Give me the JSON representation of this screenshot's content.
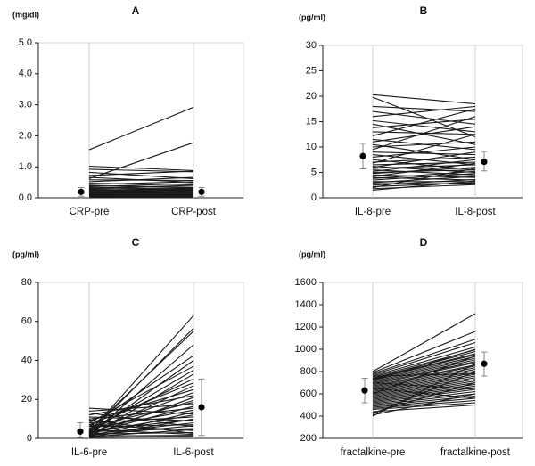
{
  "chart_data": [
    {
      "type": "line",
      "panel": "A",
      "unit": "(mg/dl)",
      "categories": [
        "CRP-pre",
        "CRP-post"
      ],
      "ylim": [
        0,
        5
      ],
      "yticks": [
        0.0,
        1.0,
        2.0,
        3.0,
        4.0,
        5.0
      ],
      "tick_decimals": 1,
      "grid": false,
      "pairs": [
        [
          1.55,
          2.92
        ],
        [
          0.62,
          1.78
        ],
        [
          1.02,
          0.88
        ],
        [
          0.92,
          0.84
        ],
        [
          0.82,
          0.62
        ],
        [
          0.72,
          0.86
        ],
        [
          0.66,
          0.5
        ],
        [
          0.58,
          0.56
        ],
        [
          0.52,
          0.66
        ],
        [
          0.47,
          0.42
        ],
        [
          0.43,
          0.52
        ],
        [
          0.39,
          0.34
        ],
        [
          0.36,
          0.46
        ],
        [
          0.33,
          0.3
        ],
        [
          0.31,
          0.4
        ],
        [
          0.29,
          0.27
        ],
        [
          0.27,
          0.33
        ],
        [
          0.25,
          0.24
        ],
        [
          0.23,
          0.29
        ],
        [
          0.21,
          0.21
        ],
        [
          0.2,
          0.26
        ],
        [
          0.18,
          0.18
        ],
        [
          0.17,
          0.22
        ],
        [
          0.16,
          0.16
        ],
        [
          0.15,
          0.2
        ],
        [
          0.14,
          0.14
        ],
        [
          0.13,
          0.17
        ],
        [
          0.12,
          0.12
        ],
        [
          0.11,
          0.15
        ],
        [
          0.1,
          0.11
        ],
        [
          0.09,
          0.13
        ],
        [
          0.08,
          0.09
        ],
        [
          0.07,
          0.1
        ],
        [
          0.06,
          0.07
        ],
        [
          0.05,
          0.08
        ],
        [
          0.05,
          0.05
        ],
        [
          0.04,
          0.06
        ],
        [
          0.03,
          0.04
        ],
        [
          0.03,
          0.05
        ],
        [
          0.02,
          0.03
        ]
      ],
      "summary": [
        {
          "category": "CRP-pre",
          "mean": 0.19,
          "low": 0.05,
          "high": 0.33
        },
        {
          "category": "CRP-post",
          "mean": 0.19,
          "low": 0.05,
          "high": 0.33
        }
      ]
    },
    {
      "type": "line",
      "panel": "B",
      "unit": "(pg/ml)",
      "categories": [
        "IL-8-pre",
        "IL-8-post"
      ],
      "ylim": [
        0,
        30
      ],
      "yticks": [
        0,
        5,
        10,
        15,
        20,
        25,
        30
      ],
      "tick_decimals": 0,
      "grid": false,
      "pairs": [
        [
          20.3,
          18.5
        ],
        [
          19.8,
          12.0
        ],
        [
          18.0,
          17.0
        ],
        [
          17.0,
          14.5
        ],
        [
          16.0,
          18.0
        ],
        [
          15.2,
          13.0
        ],
        [
          14.5,
          10.5
        ],
        [
          13.8,
          15.5
        ],
        [
          13.0,
          12.5
        ],
        [
          12.2,
          17.5
        ],
        [
          11.5,
          9.5
        ],
        [
          11.0,
          14.0
        ],
        [
          10.5,
          7.5
        ],
        [
          10.0,
          11.0
        ],
        [
          9.5,
          16.0
        ],
        [
          9.0,
          8.5
        ],
        [
          8.5,
          6.5
        ],
        [
          8.0,
          10.0
        ],
        [
          7.5,
          5.5
        ],
        [
          7.0,
          8.0
        ],
        [
          6.8,
          12.5
        ],
        [
          6.5,
          7.0
        ],
        [
          6.2,
          5.0
        ],
        [
          6.0,
          9.0
        ],
        [
          5.8,
          6.5
        ],
        [
          5.5,
          4.5
        ],
        [
          5.2,
          7.5
        ],
        [
          5.0,
          5.5
        ],
        [
          4.8,
          6.0
        ],
        [
          4.5,
          4.0
        ],
        [
          4.2,
          6.8
        ],
        [
          4.0,
          3.5
        ],
        [
          3.8,
          5.2
        ],
        [
          3.5,
          4.8
        ],
        [
          3.2,
          3.2
        ],
        [
          3.0,
          4.2
        ],
        [
          2.8,
          2.8
        ],
        [
          2.5,
          3.6
        ],
        [
          2.2,
          3.0
        ],
        [
          2.0,
          5.8
        ],
        [
          1.8,
          2.6
        ],
        [
          1.5,
          3.3
        ]
      ],
      "summary": [
        {
          "category": "IL-8-pre",
          "mean": 8.2,
          "low": 5.7,
          "high": 10.7
        },
        {
          "category": "IL-8-post",
          "mean": 7.1,
          "low": 5.3,
          "high": 9.1
        }
      ]
    },
    {
      "type": "line",
      "panel": "C",
      "unit": "(pg/ml)",
      "categories": [
        "IL-6-pre",
        "IL-6-post"
      ],
      "ylim": [
        0,
        80
      ],
      "yticks": [
        0,
        20,
        40,
        60,
        80
      ],
      "tick_decimals": 0,
      "grid": false,
      "pairs": [
        [
          3.0,
          63.0
        ],
        [
          2.5,
          56.5
        ],
        [
          4.0,
          55.0
        ],
        [
          1.5,
          48.0
        ],
        [
          6.0,
          42.5
        ],
        [
          2.0,
          40.0
        ],
        [
          8.0,
          37.0
        ],
        [
          3.5,
          35.0
        ],
        [
          1.0,
          33.0
        ],
        [
          5.0,
          30.5
        ],
        [
          7.0,
          28.5
        ],
        [
          2.0,
          27.0
        ],
        [
          9.0,
          25.0
        ],
        [
          4.0,
          23.5
        ],
        [
          12.0,
          22.0
        ],
        [
          1.5,
          21.0
        ],
        [
          3.0,
          19.5
        ],
        [
          6.0,
          18.5
        ],
        [
          14.0,
          17.5
        ],
        [
          2.5,
          16.5
        ],
        [
          10.0,
          15.5
        ],
        [
          5.0,
          14.5
        ],
        [
          1.0,
          13.5
        ],
        [
          15.5,
          12.5
        ],
        [
          3.0,
          12.0
        ],
        [
          8.0,
          11.0
        ],
        [
          0.5,
          10.0
        ],
        [
          4.0,
          9.5
        ],
        [
          11.0,
          9.0
        ],
        [
          2.0,
          8.0
        ],
        [
          6.0,
          7.0
        ],
        [
          1.5,
          6.5
        ],
        [
          13.0,
          6.0
        ],
        [
          3.5,
          5.0
        ],
        [
          0.8,
          4.5
        ],
        [
          7.0,
          4.0
        ],
        [
          2.2,
          3.0
        ],
        [
          9.5,
          2.5
        ],
        [
          4.5,
          2.0
        ],
        [
          1.2,
          1.5
        ],
        [
          0.5,
          1.0
        ]
      ],
      "summary": [
        {
          "category": "IL-6-pre",
          "mean": 3.5,
          "low": 0.5,
          "high": 8.0
        },
        {
          "category": "IL-6-post",
          "mean": 16.0,
          "low": 1.5,
          "high": 30.5
        }
      ]
    },
    {
      "type": "line",
      "panel": "D",
      "unit": "(pg/ml)",
      "categories": [
        "fractalkine-pre",
        "fractalkine-post"
      ],
      "ylim": [
        200,
        1600
      ],
      "yticks": [
        200,
        400,
        600,
        800,
        1000,
        1200,
        1400,
        1600
      ],
      "tick_decimals": 0,
      "grid": false,
      "pairs": [
        [
          800,
          1320
        ],
        [
          790,
          1160
        ],
        [
          780,
          1090
        ],
        [
          770,
          1060
        ],
        [
          760,
          1020
        ],
        [
          750,
          995
        ],
        [
          740,
          980
        ],
        [
          735,
          960
        ],
        [
          730,
          950
        ],
        [
          720,
          935
        ],
        [
          710,
          920
        ],
        [
          700,
          905
        ],
        [
          690,
          890
        ],
        [
          680,
          880
        ],
        [
          670,
          860
        ],
        [
          660,
          850
        ],
        [
          650,
          835
        ],
        [
          640,
          820
        ],
        [
          630,
          805
        ],
        [
          620,
          790
        ],
        [
          610,
          775
        ],
        [
          600,
          760
        ],
        [
          590,
          745
        ],
        [
          580,
          730
        ],
        [
          570,
          715
        ],
        [
          560,
          700
        ],
        [
          550,
          685
        ],
        [
          540,
          670
        ],
        [
          530,
          655
        ],
        [
          520,
          640
        ],
        [
          510,
          620
        ],
        [
          500,
          600
        ],
        [
          490,
          580
        ],
        [
          480,
          560
        ],
        [
          470,
          540
        ],
        [
          460,
          520
        ],
        [
          440,
          500
        ],
        [
          430,
          700
        ],
        [
          420,
          800
        ],
        [
          410,
          600
        ],
        [
          400,
          870
        ],
        [
          760,
          780
        ],
        [
          700,
          640
        ],
        [
          650,
          560
        ],
        [
          720,
          1000
        ],
        [
          600,
          940
        ]
      ],
      "summary": [
        {
          "category": "fractalkine-pre",
          "mean": 630,
          "low": 520,
          "high": 740
        },
        {
          "category": "fractalkine-post",
          "mean": 870,
          "low": 760,
          "high": 975
        }
      ]
    }
  ]
}
